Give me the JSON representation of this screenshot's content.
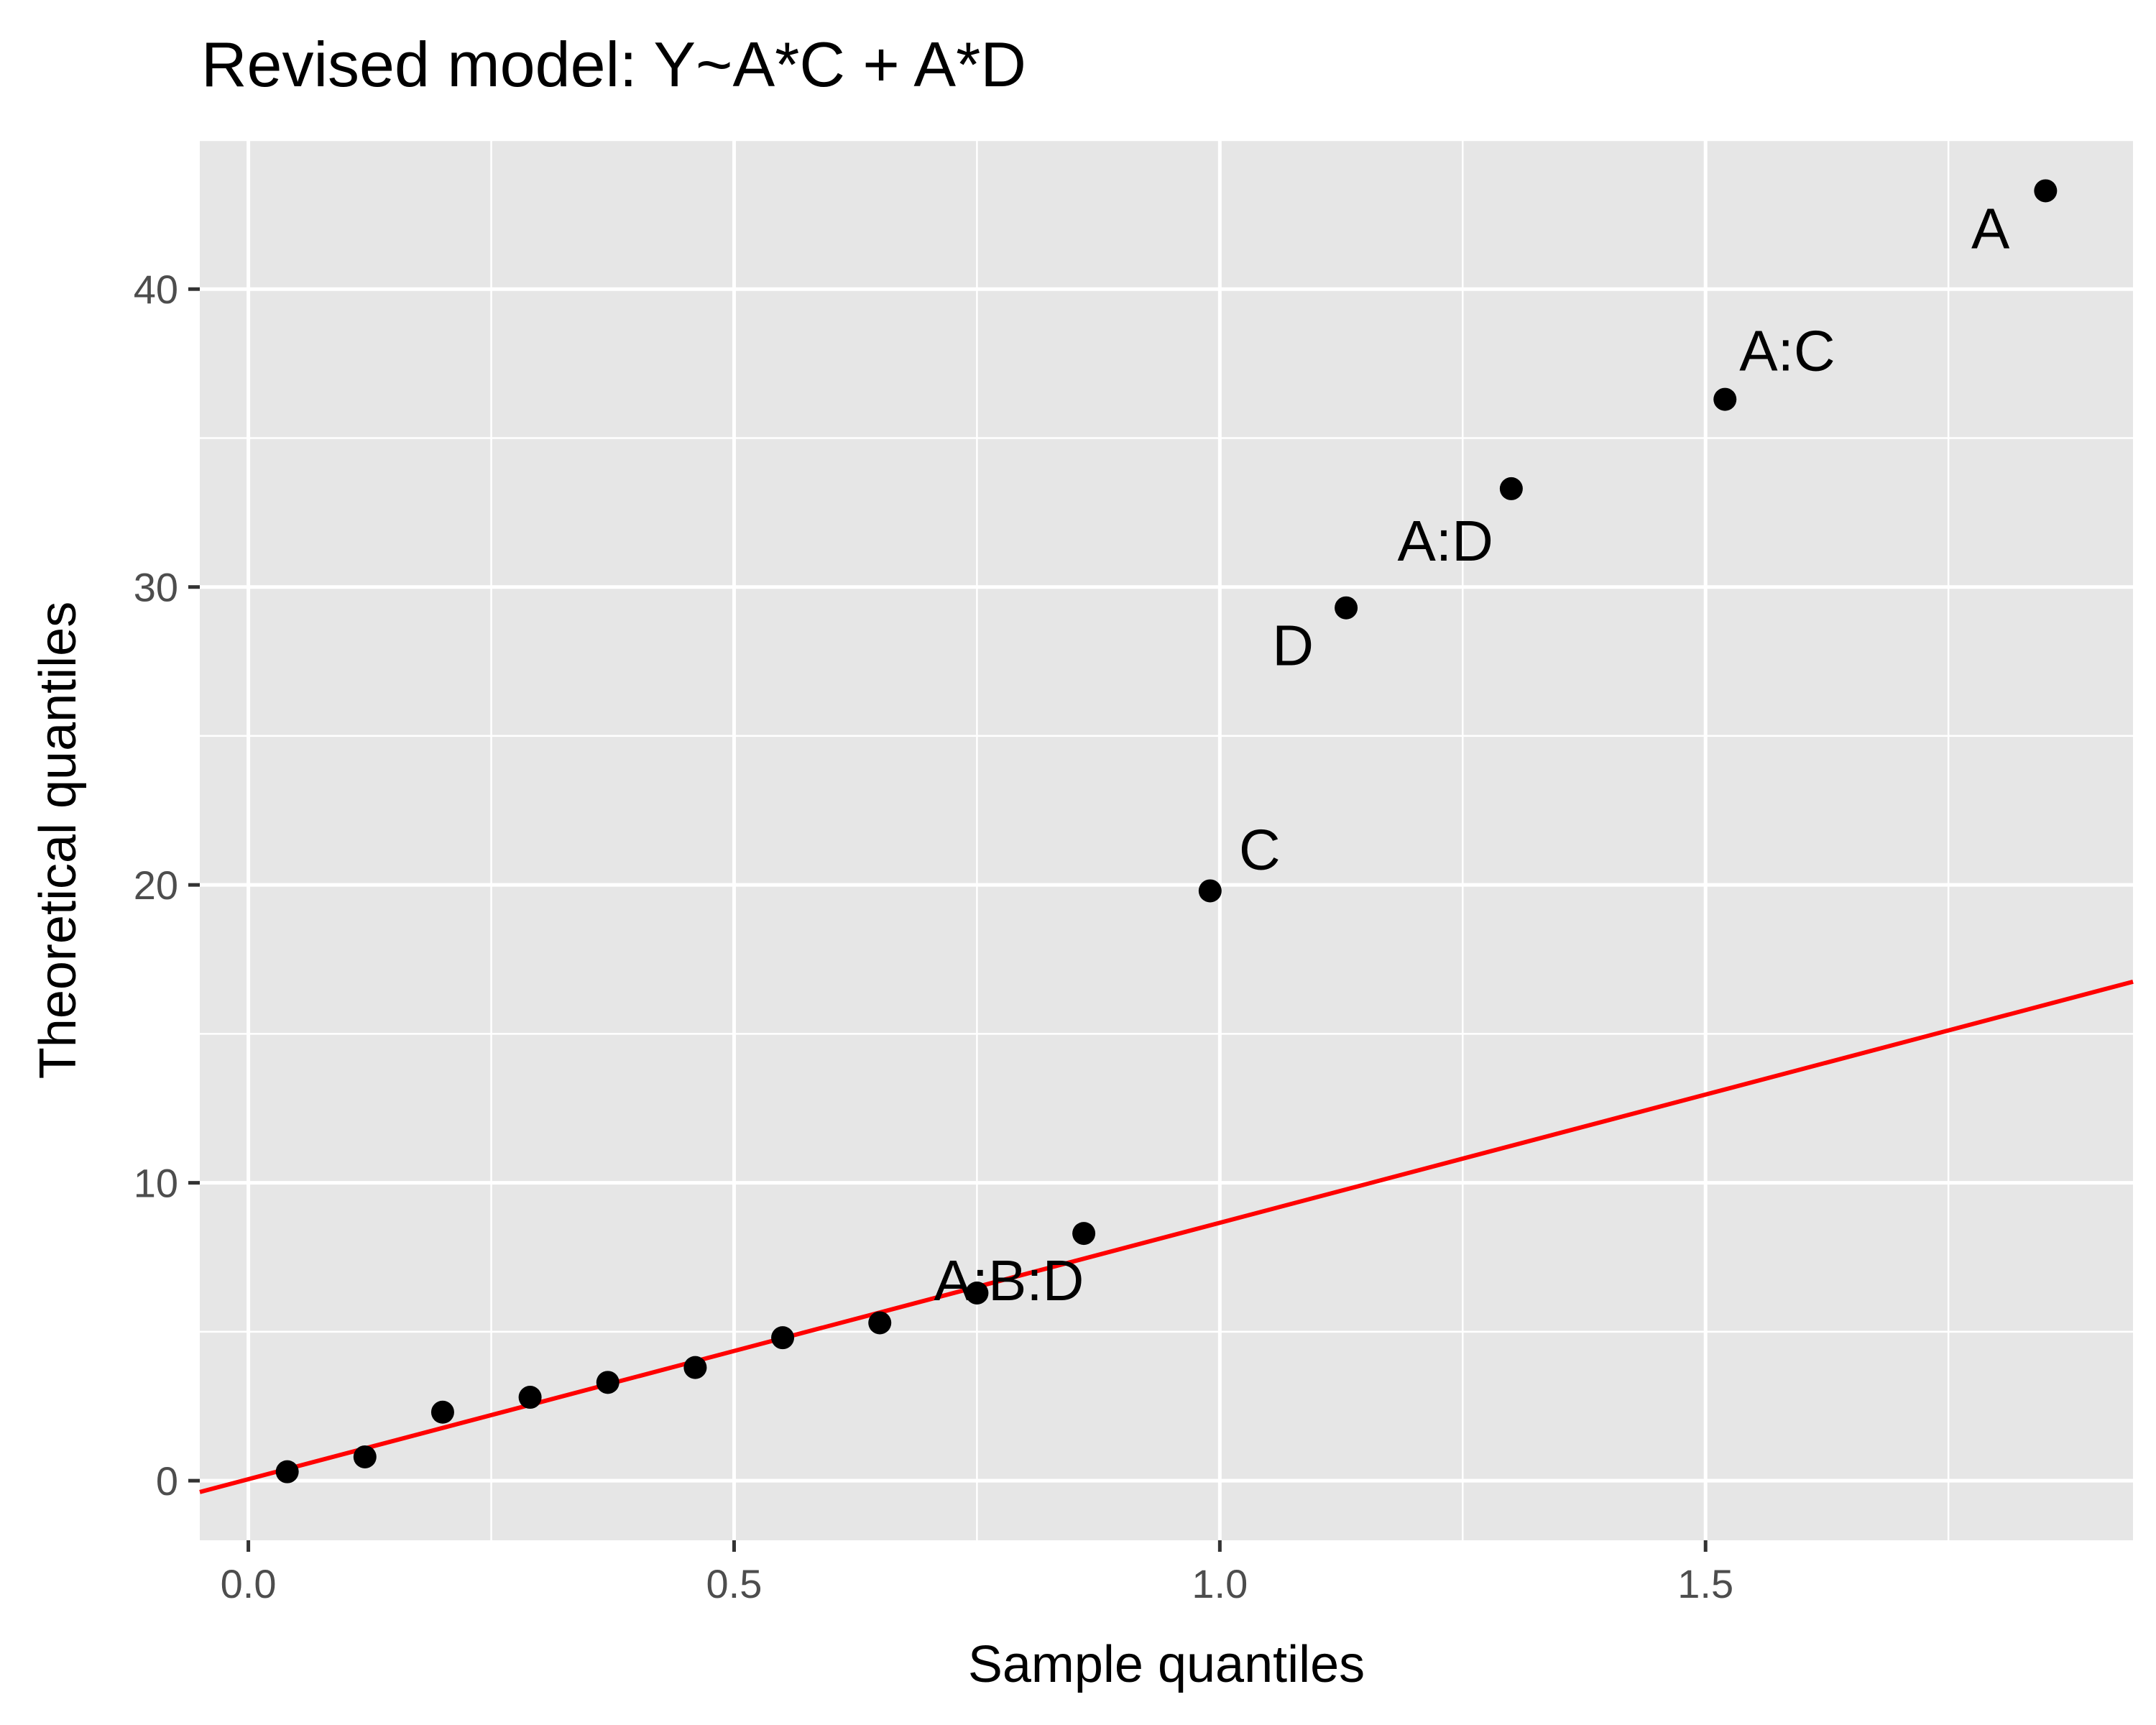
{
  "chart_data": {
    "type": "scatter",
    "title": "Revised model: Y~A*C + A*D",
    "xlabel": "Sample quantiles",
    "ylabel": "Theoretical quantiles",
    "xlim": [
      -0.05,
      1.94
    ],
    "ylim": [
      -2,
      45
    ],
    "x_ticks": [
      0.0,
      0.5,
      1.0,
      1.5
    ],
    "x_tick_labels": [
      "0.0",
      "0.5",
      "1.0",
      "1.5"
    ],
    "y_ticks": [
      0,
      10,
      20,
      30,
      40
    ],
    "y_tick_labels": [
      "0",
      "10",
      "20",
      "30",
      "40"
    ],
    "grid": true,
    "background": "#e6e6e6",
    "grid_color": "#ffffff",
    "point_color": "#000000",
    "line_color": "#ff0000",
    "points": [
      {
        "x": 0.04,
        "y": 0.3,
        "label": ""
      },
      {
        "x": 0.12,
        "y": 0.8,
        "label": ""
      },
      {
        "x": 0.2,
        "y": 2.3,
        "label": ""
      },
      {
        "x": 0.29,
        "y": 2.8,
        "label": ""
      },
      {
        "x": 0.37,
        "y": 3.3,
        "label": ""
      },
      {
        "x": 0.46,
        "y": 3.8,
        "label": ""
      },
      {
        "x": 0.55,
        "y": 4.8,
        "label": ""
      },
      {
        "x": 0.65,
        "y": 5.3,
        "label": ""
      },
      {
        "x": 0.75,
        "y": 6.3,
        "label": "A:B:D"
      },
      {
        "x": 0.86,
        "y": 8.3,
        "label": ""
      },
      {
        "x": 0.99,
        "y": 19.8,
        "label": "C"
      },
      {
        "x": 1.13,
        "y": 29.3,
        "label": "D"
      },
      {
        "x": 1.3,
        "y": 33.3,
        "label": "A:D"
      },
      {
        "x": 1.52,
        "y": 36.3,
        "label": "A:C"
      },
      {
        "x": 1.85,
        "y": 43.3,
        "label": "A"
      }
    ],
    "reference_line": {
      "x": [
        -0.05,
        1.94
      ],
      "y": [
        -0.38,
        16.75
      ]
    }
  }
}
